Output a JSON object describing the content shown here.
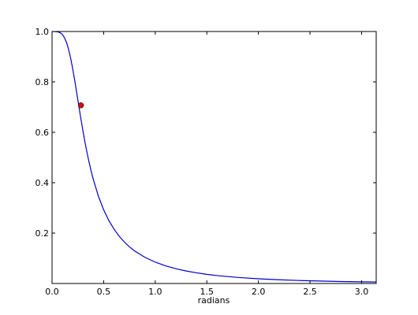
{
  "chart_data": {
    "type": "line",
    "title": "",
    "xlabel": "radians",
    "ylabel": "",
    "xlim": [
      0,
      3.14159
    ],
    "ylim": [
      0,
      1.0
    ],
    "grid": false,
    "legend": "none",
    "x_ticks": [
      {
        "value": 0.0,
        "label": "0.0"
      },
      {
        "value": 0.5,
        "label": "0.5"
      },
      {
        "value": 1.0,
        "label": "1.0"
      },
      {
        "value": 1.5,
        "label": "1.5"
      },
      {
        "value": 2.0,
        "label": "2.0"
      },
      {
        "value": 2.5,
        "label": "2.5"
      },
      {
        "value": 3.0,
        "label": "3.0"
      }
    ],
    "y_ticks": [
      {
        "value": 0.2,
        "label": "0.2"
      },
      {
        "value": 0.4,
        "label": "0.4"
      },
      {
        "value": 0.6,
        "label": "0.6"
      },
      {
        "value": 0.8,
        "label": "0.8"
      },
      {
        "value": 1.0,
        "label": "1.0"
      }
    ],
    "series": [
      {
        "color": "#0000cc",
        "x": [
          0.0,
          0.02,
          0.04,
          0.06,
          0.08,
          0.1,
          0.12,
          0.14,
          0.16,
          0.18,
          0.2,
          0.22,
          0.24,
          0.26,
          0.28,
          0.3,
          0.32,
          0.34,
          0.36,
          0.38,
          0.4,
          0.45,
          0.5,
          0.55,
          0.6,
          0.65,
          0.7,
          0.75,
          0.8,
          0.9,
          1.0,
          1.1,
          1.2,
          1.3,
          1.4,
          1.5,
          1.6,
          1.8,
          2.0,
          2.2,
          2.4,
          2.6,
          2.8,
          3.0,
          3.14
        ],
        "y": [
          1.0,
          1.0,
          0.9997,
          0.9983,
          0.9948,
          0.988,
          0.9758,
          0.9567,
          0.9297,
          0.8947,
          0.8525,
          0.805,
          0.7544,
          0.703,
          0.6525,
          0.6043,
          0.5591,
          0.5174,
          0.4791,
          0.4443,
          0.4127,
          0.3457,
          0.2925,
          0.2501,
          0.2158,
          0.1879,
          0.1648,
          0.1456,
          0.1294,
          0.1039,
          0.0848,
          0.0702,
          0.0588,
          0.0497,
          0.0424,
          0.0364,
          0.0314,
          0.024,
          0.0187,
          0.0148,
          0.0119,
          0.0097,
          0.0079,
          0.0066,
          0.0058
        ]
      }
    ],
    "marker": {
      "x": 0.28,
      "y": 0.707,
      "color": "#cc1111"
    }
  }
}
